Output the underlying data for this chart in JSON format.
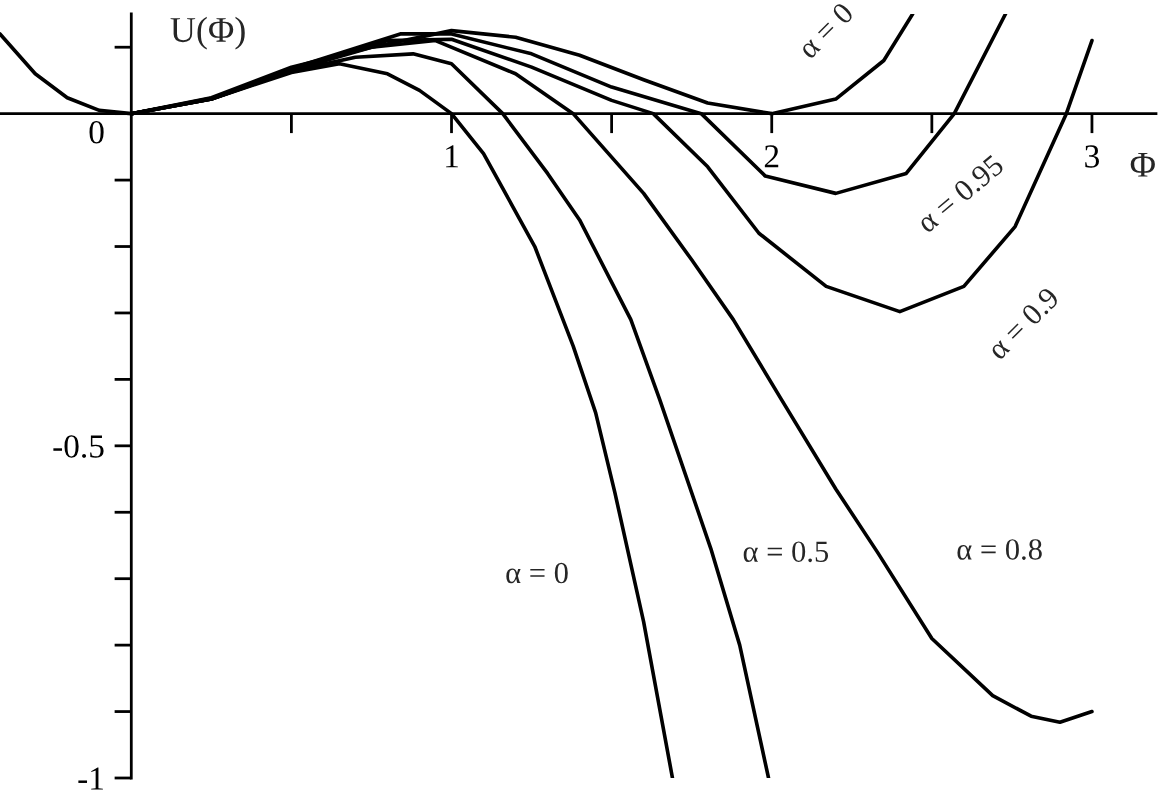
{
  "chart_data": {
    "type": "line",
    "xlabel": "Φ",
    "ylabel": "U(Φ)",
    "series": [
      {
        "name": "α = 0",
        "color": "#000000",
        "x": [
          0,
          0.25,
          0.5,
          0.65,
          0.8,
          0.9,
          1.0,
          1.1,
          1.26,
          1.38,
          1.45,
          1.51,
          1.6,
          1.69
        ],
        "values": [
          0,
          0.022,
          0.062,
          0.075,
          0.06,
          0.035,
          0,
          -0.06,
          -0.2,
          -0.35,
          -0.45,
          -0.57,
          -0.765,
          -1
        ]
      },
      {
        "name": "α = 0.5",
        "color": "#000000",
        "x": [
          0,
          0.25,
          0.5,
          0.7,
          0.88,
          1.0,
          1.16,
          1.3,
          1.4,
          1.56,
          1.65,
          1.81,
          1.9,
          1.99
        ],
        "values": [
          0,
          0.022,
          0.064,
          0.085,
          0.09,
          0.075,
          0,
          -0.09,
          -0.16,
          -0.31,
          -0.43,
          -0.655,
          -0.8,
          -1
        ]
      },
      {
        "name": "α = 0.8",
        "color": "#000000",
        "x": [
          0,
          0.25,
          0.5,
          0.75,
          0.95,
          1.2,
          1.38,
          1.6,
          1.75,
          1.88,
          2.03,
          2.2,
          2.33,
          2.5,
          2.69,
          2.81,
          2.9,
          3.0
        ],
        "values": [
          0,
          0.022,
          0.065,
          0.1,
          0.11,
          0.06,
          0,
          -0.12,
          -0.22,
          -0.31,
          -0.43,
          -0.565,
          -0.66,
          -0.79,
          -0.876,
          -0.907,
          -0.916,
          -0.9
        ]
      },
      {
        "name": "α = 0.9",
        "color": "#000000",
        "x": [
          0,
          0.25,
          0.5,
          0.8,
          1.0,
          1.25,
          1.5,
          1.63,
          1.8,
          1.96,
          2.17,
          2.4,
          2.6,
          2.76,
          2.92,
          3.0
        ],
        "values": [
          0,
          0.022,
          0.066,
          0.11,
          0.112,
          0.07,
          0.02,
          0,
          -0.08,
          -0.18,
          -0.26,
          -0.298,
          -0.26,
          -0.17,
          0,
          0.11
        ]
      },
      {
        "name": "α = 0.95",
        "color": "#000000",
        "x": [
          0,
          0.25,
          0.5,
          0.84,
          1.0,
          1.25,
          1.5,
          1.78,
          1.98,
          2.2,
          2.42,
          2.57,
          2.73
        ],
        "values": [
          0,
          0.023,
          0.068,
          0.12,
          0.12,
          0.09,
          0.04,
          0,
          -0.094,
          -0.12,
          -0.09,
          0,
          0.15
        ]
      },
      {
        "name": "α = 0",
        "color": "#000000",
        "x": [
          -0.41,
          -0.3,
          -0.2,
          -0.1,
          0,
          0.25,
          0.5,
          0.75,
          1.0,
          1.2,
          1.4,
          1.6,
          1.8,
          2.0,
          2.2,
          2.35,
          2.44
        ],
        "values": [
          0.12,
          0.06,
          0.024,
          0.005,
          0,
          0.024,
          0.07,
          0.1,
          0.125,
          0.115,
          0.088,
          0.051,
          0.016,
          0,
          0.022,
          0.08,
          0.15
        ]
      }
    ],
    "xlim": [
      -0.41,
      3.2
    ],
    "ylim": [
      -1,
      0.15
    ],
    "xticks": [
      {
        "value": 0.5,
        "label": null
      },
      1,
      {
        "value": 1.5,
        "label": null
      },
      2,
      {
        "value": 2.5,
        "label": null
      },
      3
    ],
    "yticks": [
      -1,
      {
        "value": -0.9,
        "label": null
      },
      {
        "value": -0.8,
        "label": null
      },
      {
        "value": -0.7,
        "label": null
      },
      {
        "value": -0.6,
        "label": null
      },
      -0.5,
      {
        "value": -0.4,
        "label": null
      },
      {
        "value": -0.3,
        "label": null
      },
      {
        "value": -0.2,
        "label": null
      },
      {
        "value": -0.1,
        "label": null
      },
      0,
      {
        "value": 0.1,
        "label": null
      }
    ],
    "grid": false,
    "legend": false,
    "marker": "none",
    "line_style": "solid"
  }
}
